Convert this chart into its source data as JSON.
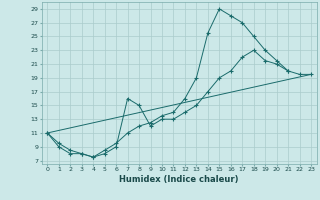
{
  "xlabel": "Humidex (Indice chaleur)",
  "bg_color": "#cce8e8",
  "line_color": "#1a6b6b",
  "grid_color": "#aacccc",
  "xlim": [
    -0.5,
    23.5
  ],
  "ylim": [
    6.5,
    30
  ],
  "yticks": [
    7,
    9,
    11,
    13,
    15,
    17,
    19,
    21,
    23,
    25,
    27,
    29
  ],
  "xticks": [
    0,
    1,
    2,
    3,
    4,
    5,
    6,
    7,
    8,
    9,
    10,
    11,
    12,
    13,
    14,
    15,
    16,
    17,
    18,
    19,
    20,
    21,
    22,
    23
  ],
  "line1_x": [
    0,
    1,
    2,
    3,
    4,
    5,
    6,
    7,
    8,
    9,
    10,
    11,
    12,
    13,
    14,
    15,
    16,
    17,
    18,
    19,
    20,
    21
  ],
  "line1_y": [
    11,
    9,
    8,
    8,
    7.5,
    8.5,
    9.5,
    11,
    12,
    12.5,
    13.5,
    14,
    16,
    19,
    25.5,
    29,
    28,
    27,
    25,
    23,
    21.5,
    20
  ],
  "line2_x": [
    0,
    1,
    2,
    3,
    4,
    5,
    6,
    7,
    8,
    9,
    10,
    11,
    12,
    13,
    14,
    15,
    16,
    17,
    18,
    19,
    20,
    21,
    22,
    23
  ],
  "line2_y": [
    11,
    9.5,
    8.5,
    8,
    7.5,
    8,
    9,
    16,
    15,
    12,
    13,
    13,
    14,
    15,
    17,
    19,
    20,
    22,
    23,
    21.5,
    21,
    20,
    19.5,
    19.5
  ],
  "line3_x": [
    0,
    23
  ],
  "line3_y": [
    11,
    19.5
  ]
}
